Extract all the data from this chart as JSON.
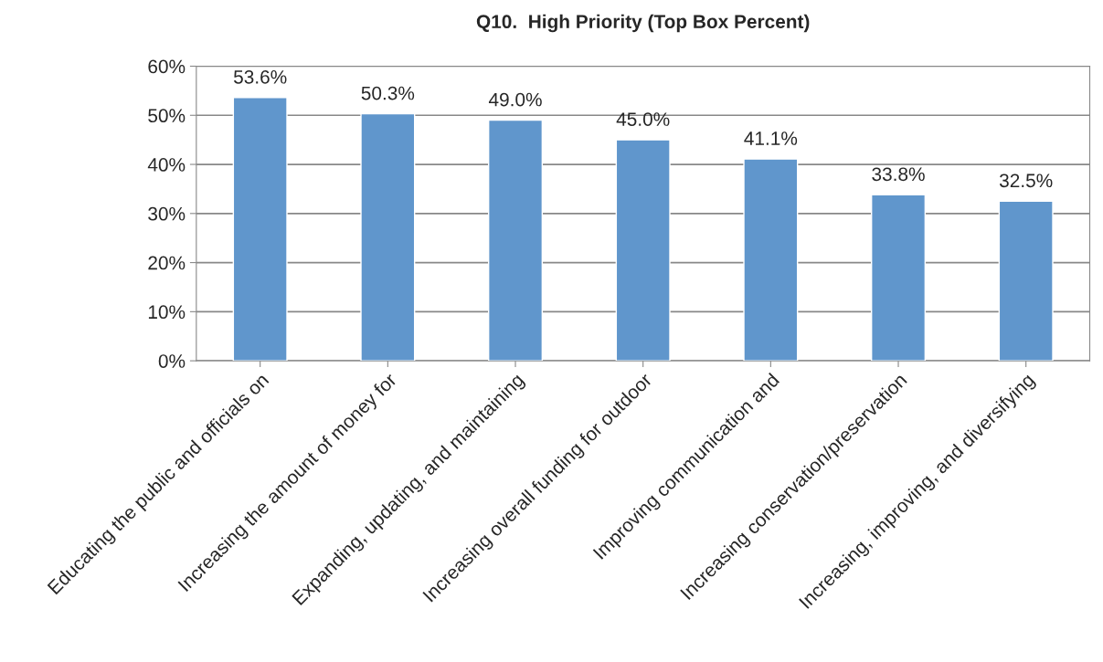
{
  "chart_data": {
    "type": "bar",
    "title": "Q10.  High Priority (Top Box Percent)",
    "categories": [
      "Educating the public and officials on",
      "Increasing the amount of money for",
      "Expanding, updating, and maintaining",
      "Increasing overall funding for outdoor",
      "Improving communication and",
      "Increasing conservation/preservation",
      "Increasing, improving, and diversifying"
    ],
    "values": [
      53.6,
      50.3,
      49.0,
      45.0,
      41.1,
      33.8,
      32.5
    ],
    "value_labels": [
      "53.6%",
      "50.3%",
      "49.0%",
      "45.0%",
      "41.1%",
      "33.8%",
      "32.5%"
    ],
    "color": "#6096cc",
    "ylim": [
      0,
      60
    ],
    "yticks": [
      {
        "value": 0,
        "label": "0%"
      },
      {
        "value": 10,
        "label": "10%"
      },
      {
        "value": 20,
        "label": "20%"
      },
      {
        "value": 30,
        "label": "30%"
      },
      {
        "value": 40,
        "label": "40%"
      },
      {
        "value": 50,
        "label": "50%"
      },
      {
        "value": 60,
        "label": "60%"
      }
    ],
    "grid": "y"
  }
}
